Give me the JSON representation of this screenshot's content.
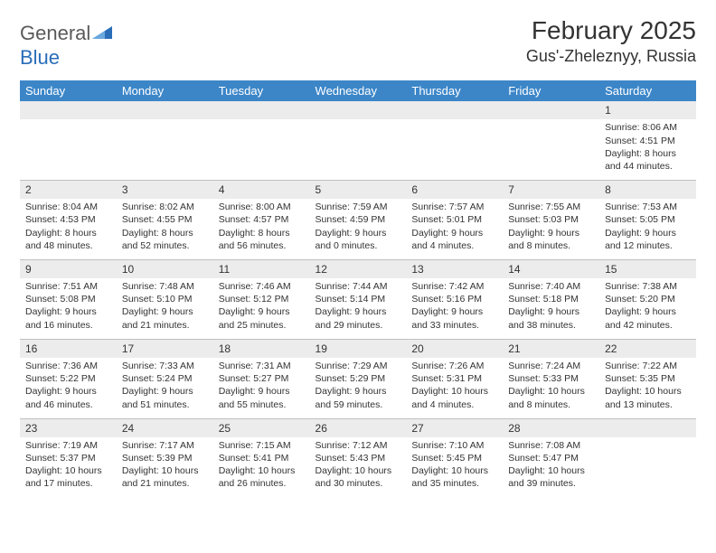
{
  "logo": {
    "text1": "General",
    "text2": "Blue"
  },
  "title": "February 2025",
  "location": "Gus'-Zheleznyy, Russia",
  "colors": {
    "header_bg": "#3c86c8",
    "header_text": "#ffffff",
    "daynum_bg": "#ececec",
    "border": "#bfbfbf",
    "text": "#333333",
    "logo_gray": "#5a5a5a",
    "logo_blue": "#2a6db8"
  },
  "day_headers": [
    "Sunday",
    "Monday",
    "Tuesday",
    "Wednesday",
    "Thursday",
    "Friday",
    "Saturday"
  ],
  "weeks": [
    [
      {
        "n": "",
        "lines": []
      },
      {
        "n": "",
        "lines": []
      },
      {
        "n": "",
        "lines": []
      },
      {
        "n": "",
        "lines": []
      },
      {
        "n": "",
        "lines": []
      },
      {
        "n": "",
        "lines": []
      },
      {
        "n": "1",
        "lines": [
          "Sunrise: 8:06 AM",
          "Sunset: 4:51 PM",
          "Daylight: 8 hours and 44 minutes."
        ]
      }
    ],
    [
      {
        "n": "2",
        "lines": [
          "Sunrise: 8:04 AM",
          "Sunset: 4:53 PM",
          "Daylight: 8 hours and 48 minutes."
        ]
      },
      {
        "n": "3",
        "lines": [
          "Sunrise: 8:02 AM",
          "Sunset: 4:55 PM",
          "Daylight: 8 hours and 52 minutes."
        ]
      },
      {
        "n": "4",
        "lines": [
          "Sunrise: 8:00 AM",
          "Sunset: 4:57 PM",
          "Daylight: 8 hours and 56 minutes."
        ]
      },
      {
        "n": "5",
        "lines": [
          "Sunrise: 7:59 AM",
          "Sunset: 4:59 PM",
          "Daylight: 9 hours and 0 minutes."
        ]
      },
      {
        "n": "6",
        "lines": [
          "Sunrise: 7:57 AM",
          "Sunset: 5:01 PM",
          "Daylight: 9 hours and 4 minutes."
        ]
      },
      {
        "n": "7",
        "lines": [
          "Sunrise: 7:55 AM",
          "Sunset: 5:03 PM",
          "Daylight: 9 hours and 8 minutes."
        ]
      },
      {
        "n": "8",
        "lines": [
          "Sunrise: 7:53 AM",
          "Sunset: 5:05 PM",
          "Daylight: 9 hours and 12 minutes."
        ]
      }
    ],
    [
      {
        "n": "9",
        "lines": [
          "Sunrise: 7:51 AM",
          "Sunset: 5:08 PM",
          "Daylight: 9 hours and 16 minutes."
        ]
      },
      {
        "n": "10",
        "lines": [
          "Sunrise: 7:48 AM",
          "Sunset: 5:10 PM",
          "Daylight: 9 hours and 21 minutes."
        ]
      },
      {
        "n": "11",
        "lines": [
          "Sunrise: 7:46 AM",
          "Sunset: 5:12 PM",
          "Daylight: 9 hours and 25 minutes."
        ]
      },
      {
        "n": "12",
        "lines": [
          "Sunrise: 7:44 AM",
          "Sunset: 5:14 PM",
          "Daylight: 9 hours and 29 minutes."
        ]
      },
      {
        "n": "13",
        "lines": [
          "Sunrise: 7:42 AM",
          "Sunset: 5:16 PM",
          "Daylight: 9 hours and 33 minutes."
        ]
      },
      {
        "n": "14",
        "lines": [
          "Sunrise: 7:40 AM",
          "Sunset: 5:18 PM",
          "Daylight: 9 hours and 38 minutes."
        ]
      },
      {
        "n": "15",
        "lines": [
          "Sunrise: 7:38 AM",
          "Sunset: 5:20 PM",
          "Daylight: 9 hours and 42 minutes."
        ]
      }
    ],
    [
      {
        "n": "16",
        "lines": [
          "Sunrise: 7:36 AM",
          "Sunset: 5:22 PM",
          "Daylight: 9 hours and 46 minutes."
        ]
      },
      {
        "n": "17",
        "lines": [
          "Sunrise: 7:33 AM",
          "Sunset: 5:24 PM",
          "Daylight: 9 hours and 51 minutes."
        ]
      },
      {
        "n": "18",
        "lines": [
          "Sunrise: 7:31 AM",
          "Sunset: 5:27 PM",
          "Daylight: 9 hours and 55 minutes."
        ]
      },
      {
        "n": "19",
        "lines": [
          "Sunrise: 7:29 AM",
          "Sunset: 5:29 PM",
          "Daylight: 9 hours and 59 minutes."
        ]
      },
      {
        "n": "20",
        "lines": [
          "Sunrise: 7:26 AM",
          "Sunset: 5:31 PM",
          "Daylight: 10 hours and 4 minutes."
        ]
      },
      {
        "n": "21",
        "lines": [
          "Sunrise: 7:24 AM",
          "Sunset: 5:33 PM",
          "Daylight: 10 hours and 8 minutes."
        ]
      },
      {
        "n": "22",
        "lines": [
          "Sunrise: 7:22 AM",
          "Sunset: 5:35 PM",
          "Daylight: 10 hours and 13 minutes."
        ]
      }
    ],
    [
      {
        "n": "23",
        "lines": [
          "Sunrise: 7:19 AM",
          "Sunset: 5:37 PM",
          "Daylight: 10 hours and 17 minutes."
        ]
      },
      {
        "n": "24",
        "lines": [
          "Sunrise: 7:17 AM",
          "Sunset: 5:39 PM",
          "Daylight: 10 hours and 21 minutes."
        ]
      },
      {
        "n": "25",
        "lines": [
          "Sunrise: 7:15 AM",
          "Sunset: 5:41 PM",
          "Daylight: 10 hours and 26 minutes."
        ]
      },
      {
        "n": "26",
        "lines": [
          "Sunrise: 7:12 AM",
          "Sunset: 5:43 PM",
          "Daylight: 10 hours and 30 minutes."
        ]
      },
      {
        "n": "27",
        "lines": [
          "Sunrise: 7:10 AM",
          "Sunset: 5:45 PM",
          "Daylight: 10 hours and 35 minutes."
        ]
      },
      {
        "n": "28",
        "lines": [
          "Sunrise: 7:08 AM",
          "Sunset: 5:47 PM",
          "Daylight: 10 hours and 39 minutes."
        ]
      },
      {
        "n": "",
        "lines": []
      }
    ]
  ]
}
